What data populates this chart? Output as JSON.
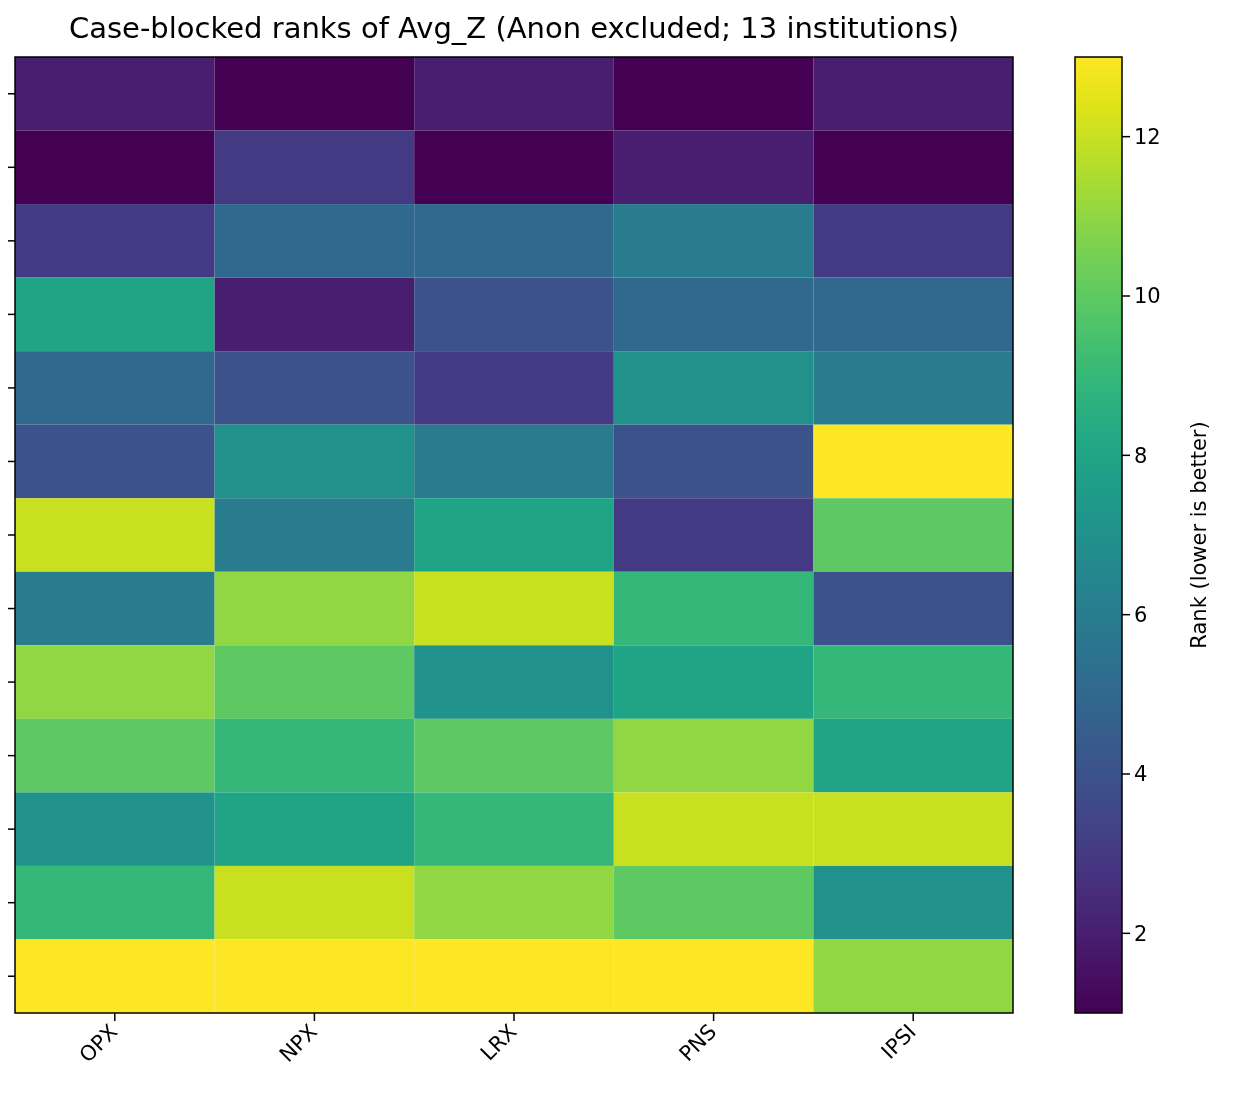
{
  "chart_data": {
    "type": "heatmap",
    "title": "Case-blocked ranks of Avg_Z (Anon excluded; 13 institutions)",
    "clabel": "Rank (lower is better)",
    "categories": [
      "OPX",
      "NPX",
      "LRX",
      "PNS",
      "IPSI"
    ],
    "y_categories": [
      null,
      null,
      null,
      null,
      null,
      null,
      null,
      null,
      null,
      null,
      null,
      null,
      null
    ],
    "cells": [
      [
        2,
        1,
        2,
        1,
        2
      ],
      [
        1,
        3,
        1,
        2,
        1
      ],
      [
        3,
        5,
        5,
        6,
        3
      ],
      [
        8,
        2,
        4,
        5,
        5
      ],
      [
        5,
        4,
        3,
        7,
        6
      ],
      [
        4,
        7,
        6,
        4,
        13
      ],
      [
        12,
        6,
        8,
        3,
        10
      ],
      [
        6,
        11,
        12,
        9,
        4
      ],
      [
        11,
        10,
        7,
        8,
        9
      ],
      [
        10,
        9,
        10,
        11,
        8
      ],
      [
        7,
        8,
        9,
        12,
        12
      ],
      [
        9,
        12,
        11,
        10,
        7
      ],
      [
        13,
        13,
        13,
        13,
        11
      ]
    ],
    "clim": [
      1,
      13
    ],
    "cticks": [
      2,
      4,
      6,
      8,
      10,
      12
    ],
    "tick_labels": "x"
  }
}
